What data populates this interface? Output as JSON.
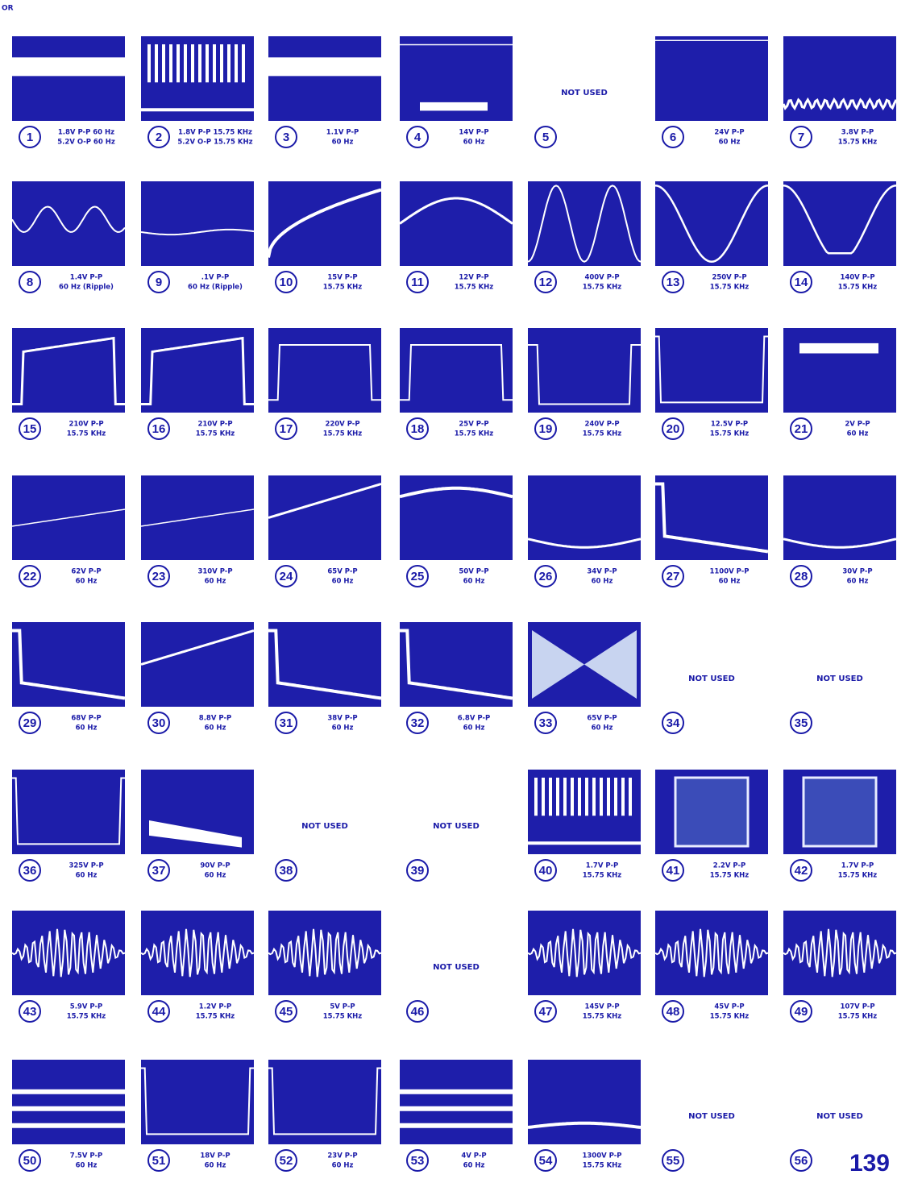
{
  "header": {
    "corner": "OR"
  },
  "items": [
    {
      "number": "1",
      "caption": [
        "1.8V P-P 60 Hz",
        "5.2V O-P 60 Hz"
      ]
    },
    {
      "number": "2",
      "caption": [
        "1.8V P-P 15.75 KHz",
        "5.2V O-P 15.75 KHz"
      ]
    },
    {
      "number": "3",
      "caption": [
        "1.1V P-P",
        "60 Hz"
      ]
    },
    {
      "number": "4",
      "caption": [
        "14V P-P",
        "60 Hz"
      ]
    },
    {
      "number": "5",
      "note": "NOT USED"
    },
    {
      "number": "6",
      "caption": [
        "24V P-P",
        "60 Hz"
      ]
    },
    {
      "number": "7",
      "caption": [
        "3.8V P-P",
        "15.75 KHz"
      ]
    },
    {
      "number": "8",
      "caption": [
        "1.4V P-P",
        "60 Hz (Ripple)"
      ]
    },
    {
      "number": "9",
      "caption": [
        ".1V P-P",
        "60 Hz (Ripple)"
      ]
    },
    {
      "number": "10",
      "caption": [
        "15V P-P",
        "15.75 KHz"
      ]
    },
    {
      "number": "11",
      "caption": [
        "12V P-P",
        "15.75 KHz"
      ]
    },
    {
      "number": "12",
      "caption": [
        "400V P-P",
        "15.75 KHz"
      ]
    },
    {
      "number": "13",
      "caption": [
        "250V P-P",
        "15.75 KHz"
      ]
    },
    {
      "number": "14",
      "caption": [
        "140V P-P",
        "15.75 KHz"
      ]
    },
    {
      "number": "15",
      "caption": [
        "210V P-P",
        "15.75 KHz"
      ]
    },
    {
      "number": "16",
      "caption": [
        "210V P-P",
        "15.75 KHz"
      ]
    },
    {
      "number": "17",
      "caption": [
        "220V P-P",
        "15.75 KHz"
      ]
    },
    {
      "number": "18",
      "caption": [
        "25V P-P",
        "15.75 KHz"
      ]
    },
    {
      "number": "19",
      "caption": [
        "240V P-P",
        "15.75 KHz"
      ]
    },
    {
      "number": "20",
      "caption": [
        "12.5V P-P",
        "15.75 KHz"
      ]
    },
    {
      "number": "21",
      "caption": [
        "2V P-P",
        "60 Hz"
      ]
    },
    {
      "number": "22",
      "caption": [
        "62V P-P",
        "60 Hz"
      ]
    },
    {
      "number": "23",
      "caption": [
        "310V P-P",
        "60 Hz"
      ]
    },
    {
      "number": "24",
      "caption": [
        "65V P-P",
        "60 Hz"
      ]
    },
    {
      "number": "25",
      "caption": [
        "50V P-P",
        "60 Hz"
      ]
    },
    {
      "number": "26",
      "caption": [
        "34V P-P",
        "60 Hz"
      ]
    },
    {
      "number": "27",
      "caption": [
        "1100V P-P",
        "60 Hz"
      ]
    },
    {
      "number": "28",
      "caption": [
        "30V P-P",
        "60 Hz"
      ]
    },
    {
      "number": "29",
      "caption": [
        "68V P-P",
        "60 Hz"
      ]
    },
    {
      "number": "30",
      "caption": [
        "8.8V P-P",
        "60 Hz"
      ]
    },
    {
      "number": "31",
      "caption": [
        "38V P-P",
        "60 Hz"
      ]
    },
    {
      "number": "32",
      "caption": [
        "6.8V P-P",
        "60 Hz"
      ]
    },
    {
      "number": "33",
      "caption": [
        "65V P-P",
        "60 Hz"
      ]
    },
    {
      "number": "34",
      "note": "NOT USED"
    },
    {
      "number": "35",
      "note": "NOT USED"
    },
    {
      "number": "36",
      "caption": [
        "325V P-P",
        "60 Hz"
      ]
    },
    {
      "number": "37",
      "caption": [
        "90V P-P",
        "60 Hz"
      ]
    },
    {
      "number": "38",
      "note": "NOT USED"
    },
    {
      "number": "39",
      "note": "NOT USED"
    },
    {
      "number": "40",
      "caption": [
        "1.7V P-P",
        "15.75 KHz"
      ]
    },
    {
      "number": "41",
      "caption": [
        "2.2V P-P",
        "15.75 KHz"
      ]
    },
    {
      "number": "42",
      "caption": [
        "1.7V P-P",
        "15.75 KHz"
      ]
    },
    {
      "number": "43",
      "caption": [
        "5.9V P-P",
        "15.75 KHz"
      ]
    },
    {
      "number": "44",
      "caption": [
        "1.2V P-P",
        "15.75 KHz"
      ]
    },
    {
      "number": "45",
      "caption": [
        "5V P-P",
        "15.75 KHz"
      ]
    },
    {
      "number": "46",
      "note": "NOT USED"
    },
    {
      "number": "47",
      "caption": [
        "145V P-P",
        "15.75 KHz"
      ]
    },
    {
      "number": "48",
      "caption": [
        "45V P-P",
        "15.75 KHz"
      ]
    },
    {
      "number": "49",
      "caption": [
        "107V P-P",
        "15.75 KHz"
      ]
    },
    {
      "number": "50",
      "caption": [
        "7.5V P-P",
        "60 Hz"
      ]
    },
    {
      "number": "51",
      "caption": [
        "18V P-P",
        "60 Hz"
      ]
    },
    {
      "number": "52",
      "caption": [
        "23V P-P",
        "60 Hz"
      ]
    },
    {
      "number": "53",
      "caption": [
        "4V P-P",
        "60 Hz"
      ]
    },
    {
      "number": "54",
      "caption": [
        "1300V P-P",
        "15.75 KHz"
      ]
    },
    {
      "number": "55",
      "note": "NOT USED"
    },
    {
      "number": "56",
      "note": "NOT USED"
    }
  ],
  "footer": {
    "page_number": "139"
  }
}
